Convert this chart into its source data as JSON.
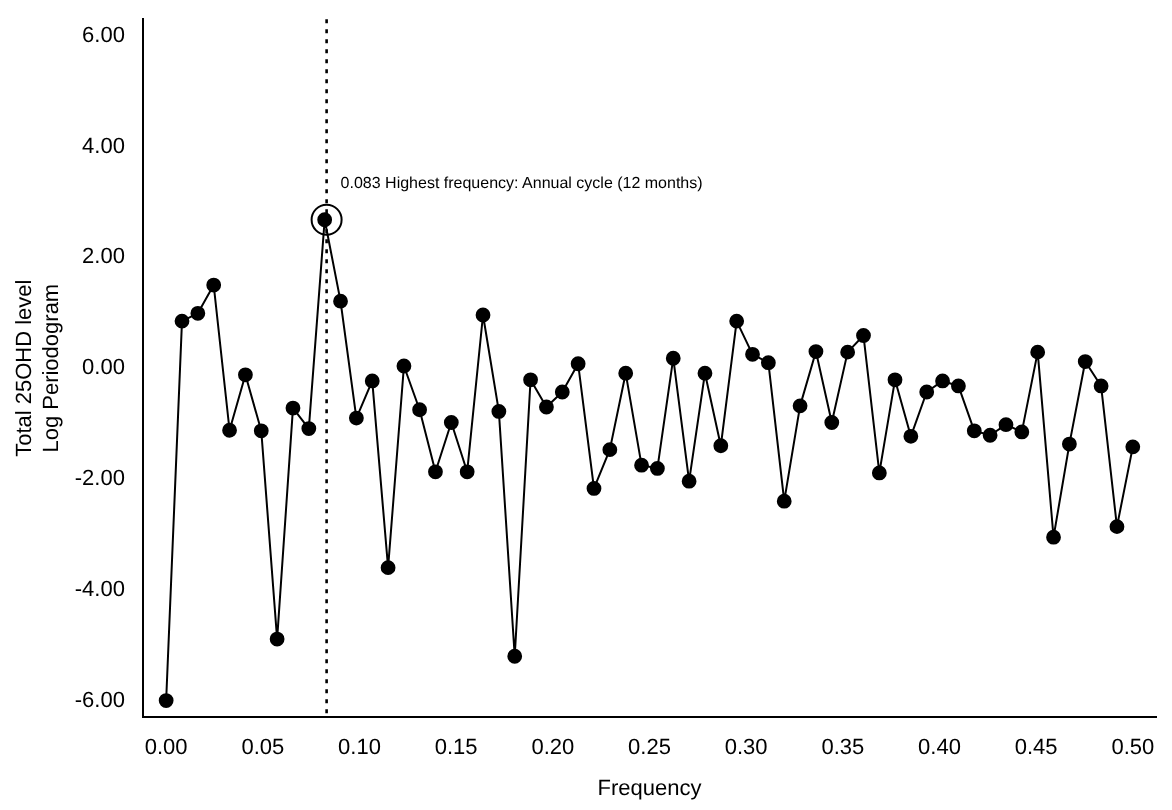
{
  "chart_data": {
    "type": "line",
    "xlabel": "Frequency",
    "ylabel": "Total 25OHD level\nLog Periodogram",
    "x": [
      0,
      0.0082,
      0.0164,
      0.0246,
      0.0328,
      0.041,
      0.0492,
      0.0574,
      0.0656,
      0.0738,
      0.082,
      0.0902,
      0.0984,
      0.1066,
      0.1148,
      0.123,
      0.1311,
      0.1393,
      0.1475,
      0.1557,
      0.1639,
      0.1721,
      0.1803,
      0.1885,
      0.1967,
      0.2049,
      0.2131,
      0.2213,
      0.2295,
      0.2377,
      0.2459,
      0.2541,
      0.2623,
      0.2705,
      0.2787,
      0.2869,
      0.2951,
      0.3033,
      0.3115,
      0.3197,
      0.3279,
      0.3361,
      0.3443,
      0.3525,
      0.3607,
      0.3689,
      0.377,
      0.3852,
      0.3934,
      0.4016,
      0.4098,
      0.418,
      0.4262,
      0.4344,
      0.4426,
      0.4508,
      0.459,
      0.4672,
      0.4754,
      0.4836,
      0.4918,
      0.5
    ],
    "series": [
      {
        "color": "#000000",
        "values": [
          -6.0,
          0.85,
          0.99,
          1.5,
          -1.12,
          -0.12,
          -1.13,
          -4.89,
          -0.72,
          -1.09,
          2.68,
          1.21,
          -0.9,
          -0.23,
          -3.6,
          0.04,
          -0.75,
          -1.87,
          -0.98,
          -1.87,
          0.96,
          -0.78,
          -5.2,
          -0.21,
          -0.7,
          -0.43,
          0.08,
          -2.17,
          -1.47,
          -0.09,
          -1.75,
          -1.81,
          0.18,
          -2.04,
          -0.09,
          -1.4,
          0.85,
          0.25,
          0.1,
          -2.4,
          -0.68,
          0.3,
          -0.98,
          0.29,
          0.59,
          -1.89,
          -0.21,
          -1.23,
          -0.43,
          -0.23,
          -0.32,
          -1.13,
          -1.21,
          -1.02,
          -1.15,
          0.29,
          -3.05,
          -1.37,
          0.12,
          -0.32,
          -2.86,
          -1.42
        ]
      }
    ],
    "xlim": [
      -0.012,
      0.512
    ],
    "ylim": [
      -6.3,
      6.3
    ],
    "xticks": [
      {
        "value": 0,
        "label": "0.00"
      },
      {
        "value": 0.05,
        "label": "0.05"
      },
      {
        "value": 0.1,
        "label": "0.10"
      },
      {
        "value": 0.15,
        "label": "0.15"
      },
      {
        "value": 0.2,
        "label": "0.20"
      },
      {
        "value": 0.25,
        "label": "0.25"
      },
      {
        "value": 0.3,
        "label": "0.30"
      },
      {
        "value": 0.35,
        "label": "0.35"
      },
      {
        "value": 0.4,
        "label": "0.40"
      },
      {
        "value": 0.45,
        "label": "0.45"
      },
      {
        "value": 0.5,
        "label": "0.50"
      }
    ],
    "yticks": [
      {
        "value": -6,
        "label": "-6.00"
      },
      {
        "value": -4,
        "label": "-4.00"
      },
      {
        "value": -2,
        "label": "-2.00"
      },
      {
        "value": 0,
        "label": "0.00"
      },
      {
        "value": 2,
        "label": "2.00"
      },
      {
        "value": 4,
        "label": "4.00"
      },
      {
        "value": 6,
        "label": "6.00"
      }
    ],
    "ref_lines": [
      {
        "axis": "x",
        "value": 0.083,
        "label": null,
        "line_style": "dotted"
      }
    ],
    "annotations": [
      {
        "text": "0.083 Highest frequency: Annual cycle (12 months)",
        "x": 0.083,
        "y": 2.68
      }
    ],
    "marker": "circle",
    "line_style": "solid",
    "grid": false,
    "legend": false
  }
}
